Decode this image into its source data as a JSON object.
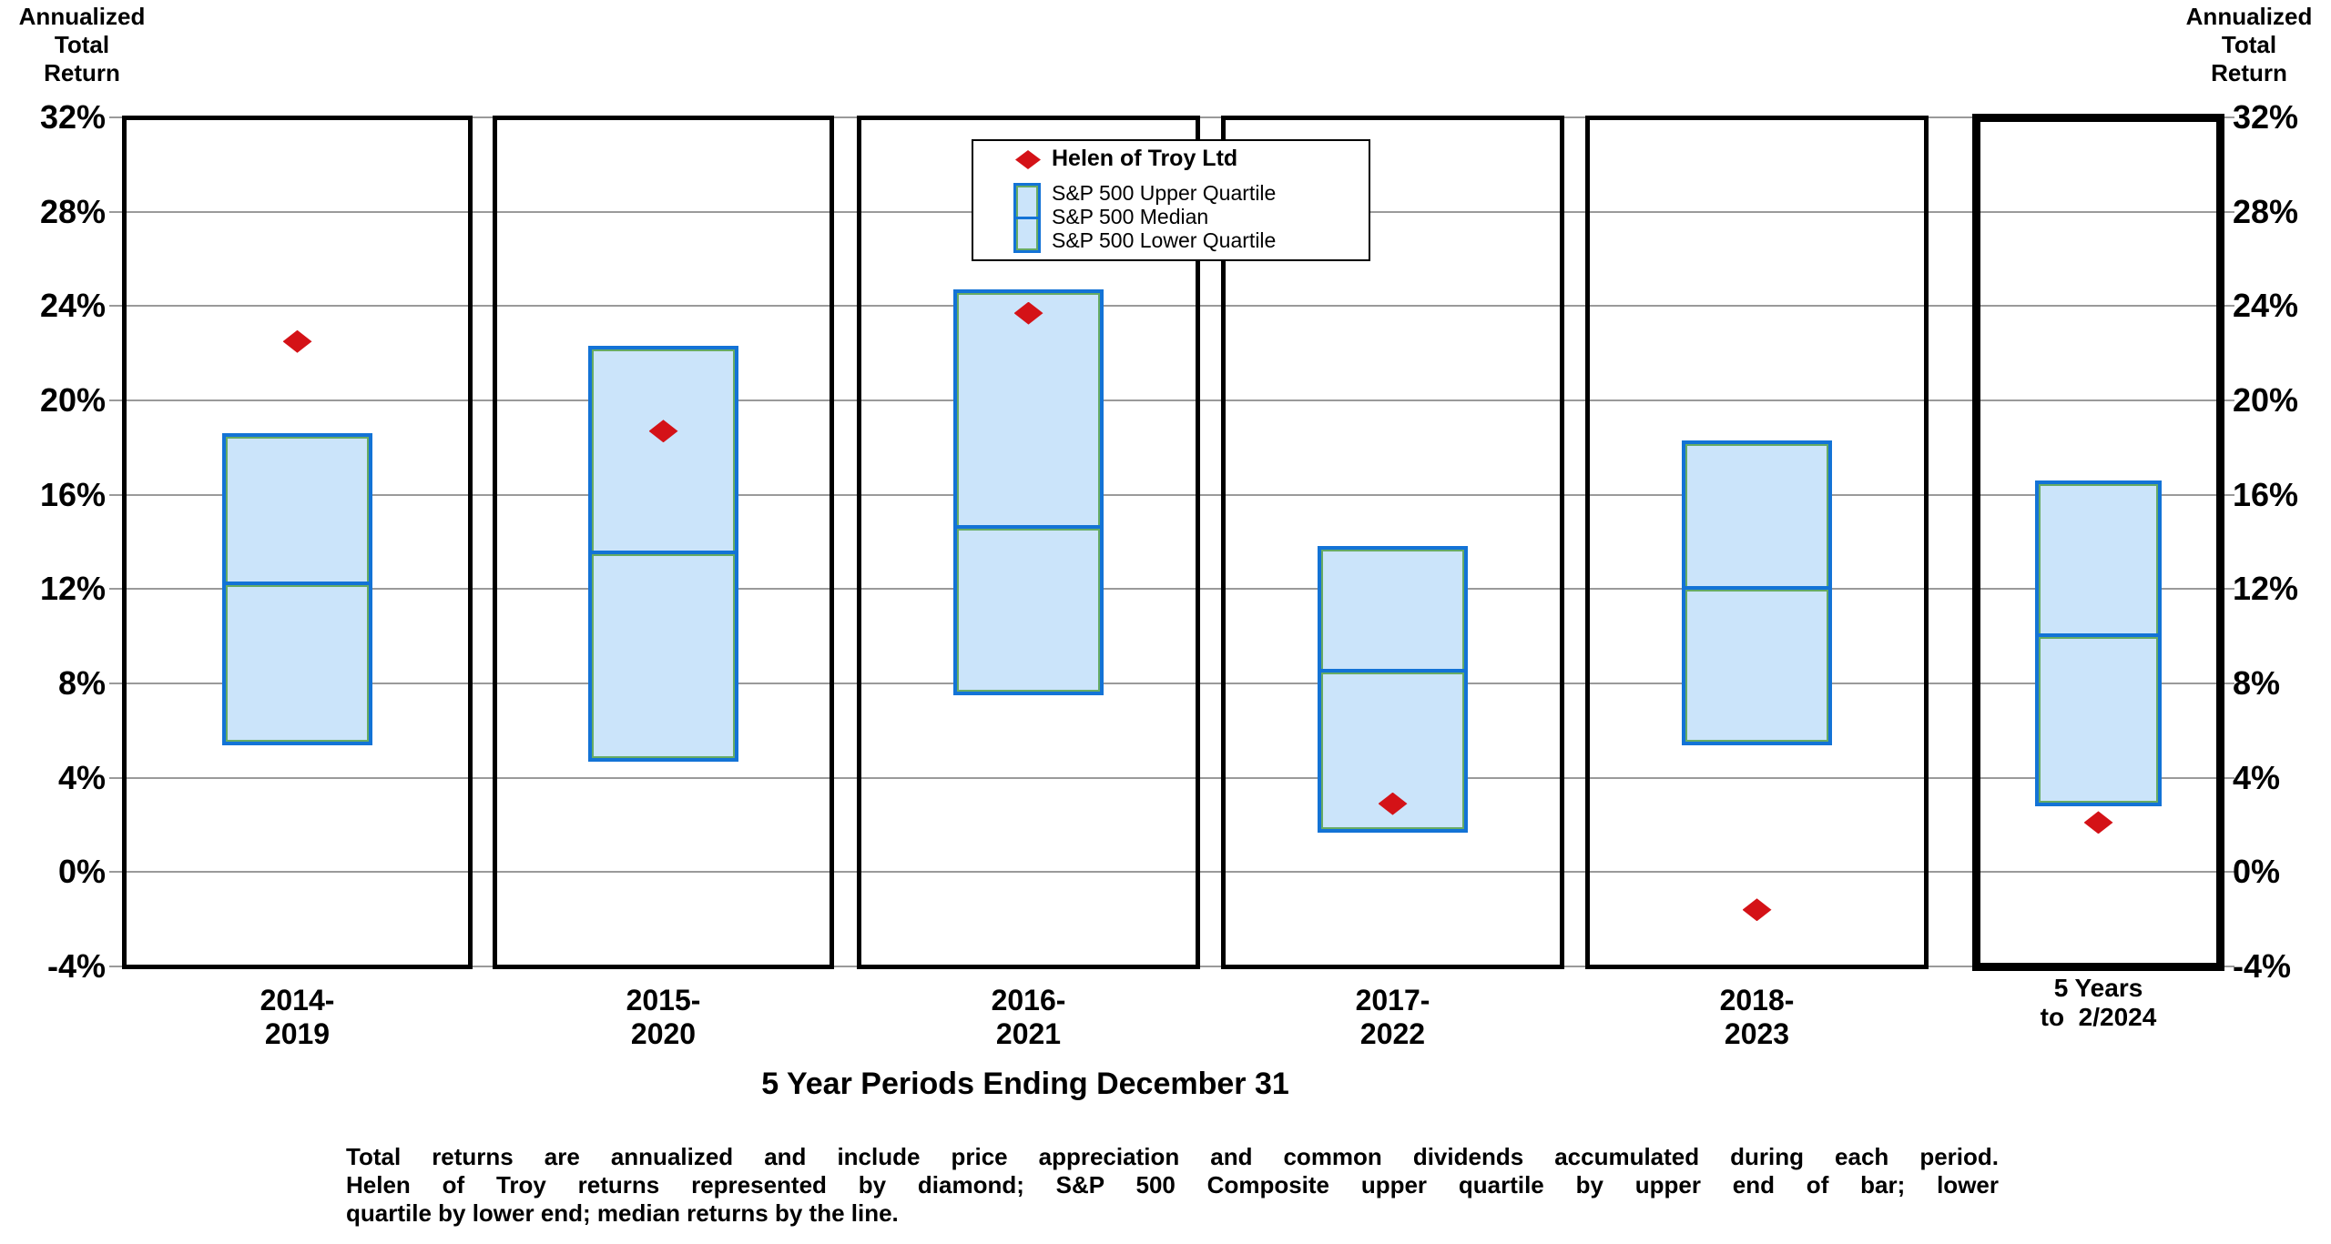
{
  "axis_title_lines": [
    "Annualized",
    "Total",
    "Return"
  ],
  "chart_data": {
    "type": "box",
    "title": "5 Year Periods Ending December 31",
    "y_axis": {
      "label": "Annualized Total Return",
      "unit": "%",
      "min": -4,
      "max": 32,
      "step": 4,
      "tick_values": [
        32,
        28,
        24,
        20,
        16,
        12,
        8,
        4,
        0,
        -4
      ],
      "tick_labels": [
        "32%",
        "28%",
        "24%",
        "20%",
        "16%",
        "12%",
        "8%",
        "4%",
        "0%",
        "-4%"
      ]
    },
    "grid": true,
    "legend": {
      "position": "top-center",
      "items": [
        {
          "label": "Helen of Troy Ltd",
          "marker": "diamond",
          "color": "#d41217"
        },
        {
          "label": "S&P 500 Upper Quartile",
          "marker": "box-upper-edge"
        },
        {
          "label": "S&P 500 Median",
          "marker": "box-median-line"
        },
        {
          "label": "S&P 500 Lower Quartile",
          "marker": "box-lower-edge"
        }
      ]
    },
    "periods": [
      {
        "label_lines": [
          "2014-",
          "2019"
        ],
        "sp500_upper_quartile": 18.5,
        "sp500_median": 12.2,
        "sp500_lower_quartile": 5.5,
        "helen_of_troy": 22.5,
        "highlighted": false
      },
      {
        "label_lines": [
          "2015-",
          "2020"
        ],
        "sp500_upper_quartile": 22.2,
        "sp500_median": 13.5,
        "sp500_lower_quartile": 4.8,
        "helen_of_troy": 18.7,
        "highlighted": false
      },
      {
        "label_lines": [
          "2016-",
          "2021"
        ],
        "sp500_upper_quartile": 24.6,
        "sp500_median": 14.6,
        "sp500_lower_quartile": 7.6,
        "helen_of_troy": 23.7,
        "highlighted": false
      },
      {
        "label_lines": [
          "2017-",
          "2022"
        ],
        "sp500_upper_quartile": 13.7,
        "sp500_median": 8.5,
        "sp500_lower_quartile": 1.8,
        "helen_of_troy": 2.9,
        "highlighted": false
      },
      {
        "label_lines": [
          "2018-",
          "2023"
        ],
        "sp500_upper_quartile": 18.2,
        "sp500_median": 12.0,
        "sp500_lower_quartile": 5.5,
        "helen_of_troy": -1.6,
        "highlighted": false
      },
      {
        "label_lines": [
          "5 Years",
          "to  2/2024"
        ],
        "sp500_upper_quartile": 16.5,
        "sp500_median": 10.0,
        "sp500_lower_quartile": 2.9,
        "helen_of_troy": 2.1,
        "highlighted": true
      }
    ],
    "colors": {
      "company_marker": "#d41217",
      "box_fill": "#cbe4fa",
      "box_border": "#1373d6",
      "box_inner_edge": "#67ab63",
      "gridline": "#9a9a9a",
      "panel_border": "#000000"
    },
    "footnote_lines": [
      "Total returns are annualized and include price appreciation and common dividends accumulated during each period.",
      "Helen of Troy returns represented by diamond; S&P 500 Composite upper quartile by upper end of bar; lower",
      "quartile by lower end; median returns by the line."
    ]
  }
}
